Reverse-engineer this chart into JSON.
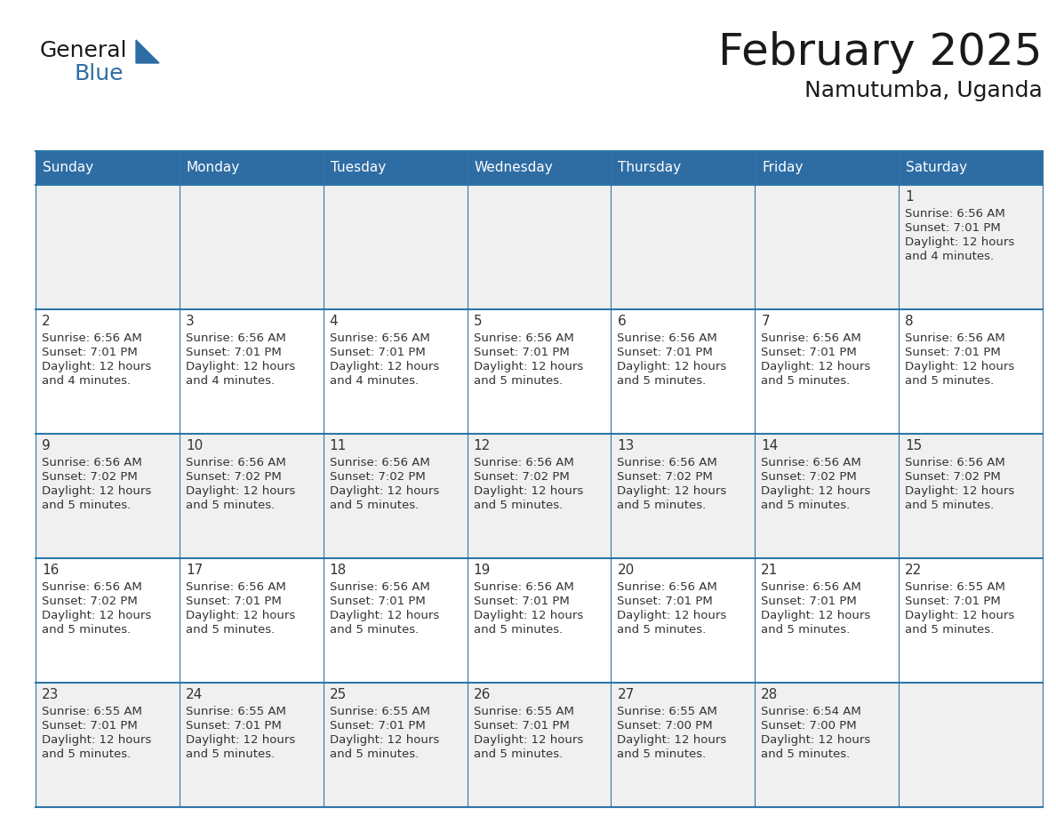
{
  "title": "February 2025",
  "subtitle": "Namutumba, Uganda",
  "days_of_week": [
    "Sunday",
    "Monday",
    "Tuesday",
    "Wednesday",
    "Thursday",
    "Friday",
    "Saturday"
  ],
  "header_bg": "#2E6DA4",
  "header_text": "#FFFFFF",
  "cell_bg_odd": "#F0F0F0",
  "cell_bg_even": "#FFFFFF",
  "border_color": "#2E75A8",
  "text_color": "#333333",
  "title_color": "#1a1a1a",
  "calendar_data": [
    [
      null,
      null,
      null,
      null,
      null,
      null,
      {
        "day": 1,
        "sunrise": "6:56 AM",
        "sunset": "7:01 PM",
        "daylight1": "12 hours",
        "daylight2": "and 4 minutes."
      }
    ],
    [
      {
        "day": 2,
        "sunrise": "6:56 AM",
        "sunset": "7:01 PM",
        "daylight1": "12 hours",
        "daylight2": "and 4 minutes."
      },
      {
        "day": 3,
        "sunrise": "6:56 AM",
        "sunset": "7:01 PM",
        "daylight1": "12 hours",
        "daylight2": "and 4 minutes."
      },
      {
        "day": 4,
        "sunrise": "6:56 AM",
        "sunset": "7:01 PM",
        "daylight1": "12 hours",
        "daylight2": "and 4 minutes."
      },
      {
        "day": 5,
        "sunrise": "6:56 AM",
        "sunset": "7:01 PM",
        "daylight1": "12 hours",
        "daylight2": "and 5 minutes."
      },
      {
        "day": 6,
        "sunrise": "6:56 AM",
        "sunset": "7:01 PM",
        "daylight1": "12 hours",
        "daylight2": "and 5 minutes."
      },
      {
        "day": 7,
        "sunrise": "6:56 AM",
        "sunset": "7:01 PM",
        "daylight1": "12 hours",
        "daylight2": "and 5 minutes."
      },
      {
        "day": 8,
        "sunrise": "6:56 AM",
        "sunset": "7:01 PM",
        "daylight1": "12 hours",
        "daylight2": "and 5 minutes."
      }
    ],
    [
      {
        "day": 9,
        "sunrise": "6:56 AM",
        "sunset": "7:02 PM",
        "daylight1": "12 hours",
        "daylight2": "and 5 minutes."
      },
      {
        "day": 10,
        "sunrise": "6:56 AM",
        "sunset": "7:02 PM",
        "daylight1": "12 hours",
        "daylight2": "and 5 minutes."
      },
      {
        "day": 11,
        "sunrise": "6:56 AM",
        "sunset": "7:02 PM",
        "daylight1": "12 hours",
        "daylight2": "and 5 minutes."
      },
      {
        "day": 12,
        "sunrise": "6:56 AM",
        "sunset": "7:02 PM",
        "daylight1": "12 hours",
        "daylight2": "and 5 minutes."
      },
      {
        "day": 13,
        "sunrise": "6:56 AM",
        "sunset": "7:02 PM",
        "daylight1": "12 hours",
        "daylight2": "and 5 minutes."
      },
      {
        "day": 14,
        "sunrise": "6:56 AM",
        "sunset": "7:02 PM",
        "daylight1": "12 hours",
        "daylight2": "and 5 minutes."
      },
      {
        "day": 15,
        "sunrise": "6:56 AM",
        "sunset": "7:02 PM",
        "daylight1": "12 hours",
        "daylight2": "and 5 minutes."
      }
    ],
    [
      {
        "day": 16,
        "sunrise": "6:56 AM",
        "sunset": "7:02 PM",
        "daylight1": "12 hours",
        "daylight2": "and 5 minutes."
      },
      {
        "day": 17,
        "sunrise": "6:56 AM",
        "sunset": "7:01 PM",
        "daylight1": "12 hours",
        "daylight2": "and 5 minutes."
      },
      {
        "day": 18,
        "sunrise": "6:56 AM",
        "sunset": "7:01 PM",
        "daylight1": "12 hours",
        "daylight2": "and 5 minutes."
      },
      {
        "day": 19,
        "sunrise": "6:56 AM",
        "sunset": "7:01 PM",
        "daylight1": "12 hours",
        "daylight2": "and 5 minutes."
      },
      {
        "day": 20,
        "sunrise": "6:56 AM",
        "sunset": "7:01 PM",
        "daylight1": "12 hours",
        "daylight2": "and 5 minutes."
      },
      {
        "day": 21,
        "sunrise": "6:56 AM",
        "sunset": "7:01 PM",
        "daylight1": "12 hours",
        "daylight2": "and 5 minutes."
      },
      {
        "day": 22,
        "sunrise": "6:55 AM",
        "sunset": "7:01 PM",
        "daylight1": "12 hours",
        "daylight2": "and 5 minutes."
      }
    ],
    [
      {
        "day": 23,
        "sunrise": "6:55 AM",
        "sunset": "7:01 PM",
        "daylight1": "12 hours",
        "daylight2": "and 5 minutes."
      },
      {
        "day": 24,
        "sunrise": "6:55 AM",
        "sunset": "7:01 PM",
        "daylight1": "12 hours",
        "daylight2": "and 5 minutes."
      },
      {
        "day": 25,
        "sunrise": "6:55 AM",
        "sunset": "7:01 PM",
        "daylight1": "12 hours",
        "daylight2": "and 5 minutes."
      },
      {
        "day": 26,
        "sunrise": "6:55 AM",
        "sunset": "7:01 PM",
        "daylight1": "12 hours",
        "daylight2": "and 5 minutes."
      },
      {
        "day": 27,
        "sunrise": "6:55 AM",
        "sunset": "7:00 PM",
        "daylight1": "12 hours",
        "daylight2": "and 5 minutes."
      },
      {
        "day": 28,
        "sunrise": "6:54 AM",
        "sunset": "7:00 PM",
        "daylight1": "12 hours",
        "daylight2": "and 5 minutes."
      },
      null
    ]
  ],
  "logo_text_general": "General",
  "logo_text_blue": "Blue",
  "logo_color_general": "#1a1a1a",
  "logo_color_blue": "#2E6DA4",
  "logo_triangle_color": "#2E6DA4"
}
